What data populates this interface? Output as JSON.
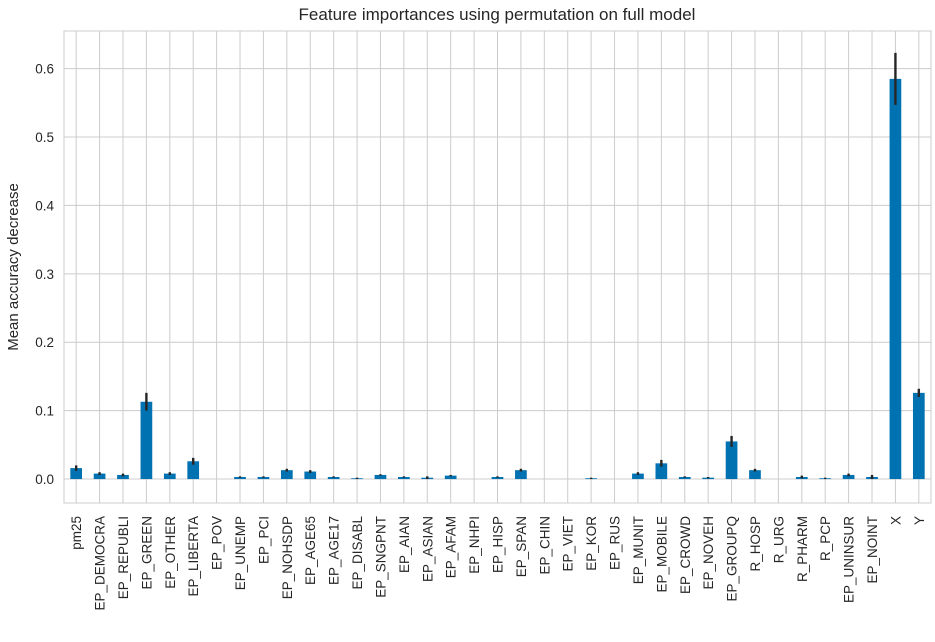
{
  "chart_data": {
    "type": "bar",
    "title": "Feature importances using permutation on full model",
    "xlabel": "",
    "ylabel": "Mean accuracy decrease",
    "ylim": [
      -0.035,
      0.655
    ],
    "yticks": [
      0.0,
      0.1,
      0.2,
      0.3,
      0.4,
      0.5,
      0.6
    ],
    "ytick_labels": [
      "0.0",
      "0.1",
      "0.2",
      "0.3",
      "0.4",
      "0.5",
      "0.6"
    ],
    "grid": true,
    "bar_color": "#0072b2",
    "categories": [
      "pm25",
      "EP_DEMOCRA",
      "EP_REPUBLI",
      "EP_GREEN",
      "EP_OTHER",
      "EP_LIBERTA",
      "EP_POV",
      "EP_UNEMP",
      "EP_PCI",
      "EP_NOHSDP",
      "EP_AGE65",
      "EP_AGE17",
      "EP_DISABL",
      "EP_SNGPNT",
      "EP_AIAN",
      "EP_ASIAN",
      "EP_AFAM",
      "EP_NHPI",
      "EP_HISP",
      "EP_SPAN",
      "EP_CHIN",
      "EP_VIET",
      "EP_KOR",
      "EP_RUS",
      "EP_MUNIT",
      "EP_MOBILE",
      "EP_CROWD",
      "EP_NOVEH",
      "EP_GROUPQ",
      "R_HOSP",
      "R_URG",
      "R_PHARM",
      "R_PCP",
      "EP_UNINSUR",
      "EP_NOINT",
      "X",
      "Y"
    ],
    "values": [
      0.016,
      0.008,
      0.006,
      0.113,
      0.008,
      0.026,
      0.0,
      0.003,
      0.003,
      0.013,
      0.011,
      0.003,
      0.001,
      0.006,
      0.003,
      0.002,
      0.005,
      0.0,
      0.003,
      0.013,
      0.0,
      0.0,
      0.001,
      0.0,
      0.008,
      0.023,
      0.003,
      0.002,
      0.055,
      0.013,
      0.0,
      0.003,
      0.001,
      0.006,
      0.003,
      0.585,
      0.126
    ],
    "errors": [
      0.004,
      0.002,
      0.002,
      0.013,
      0.002,
      0.005,
      0.0,
      0.001,
      0.001,
      0.002,
      0.002,
      0.001,
      0.001,
      0.001,
      0.001,
      0.002,
      0.001,
      0.0,
      0.001,
      0.002,
      0.0,
      0.0,
      0.001,
      0.0,
      0.002,
      0.005,
      0.001,
      0.001,
      0.008,
      0.002,
      0.0,
      0.002,
      0.001,
      0.002,
      0.003,
      0.038,
      0.006
    ]
  }
}
